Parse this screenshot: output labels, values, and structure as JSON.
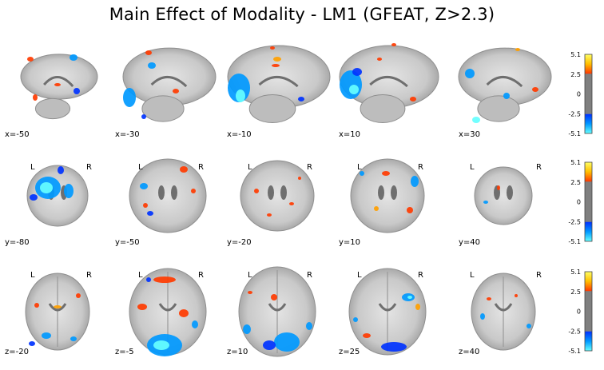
{
  "title": "Main Effect of Modality - LM1 (GFEAT, Z>2.3)",
  "orientation": {
    "left": "L",
    "right": "R"
  },
  "colorbar": {
    "ticks": [
      "5.1",
      "2.5",
      "0",
      "-2.5",
      "-5.1"
    ],
    "colors": {
      "pos_low": "#ff3b00",
      "pos_mid": "#ff9f00",
      "pos_high": "#ffff66",
      "neg_low": "#0033ff",
      "neg_mid": "#0099ff",
      "neg_high": "#66ffff",
      "mid": "#7f7f7f"
    }
  },
  "rows": [
    {
      "view": "sagittal",
      "show_lr": false,
      "slices": [
        {
          "label": "x=-50"
        },
        {
          "label": "x=-30"
        },
        {
          "label": "x=-10"
        },
        {
          "label": "x=10"
        },
        {
          "label": "x=30"
        }
      ]
    },
    {
      "view": "coronal",
      "show_lr": true,
      "slices": [
        {
          "label": "y=-80"
        },
        {
          "label": "y=-50"
        },
        {
          "label": "y=-20"
        },
        {
          "label": "y=10"
        },
        {
          "label": "y=40"
        }
      ]
    },
    {
      "view": "axial",
      "show_lr": true,
      "slices": [
        {
          "label": "z=-20"
        },
        {
          "label": "z=-5"
        },
        {
          "label": "z=10"
        },
        {
          "label": "z=25"
        },
        {
          "label": "z=40"
        }
      ]
    }
  ]
}
